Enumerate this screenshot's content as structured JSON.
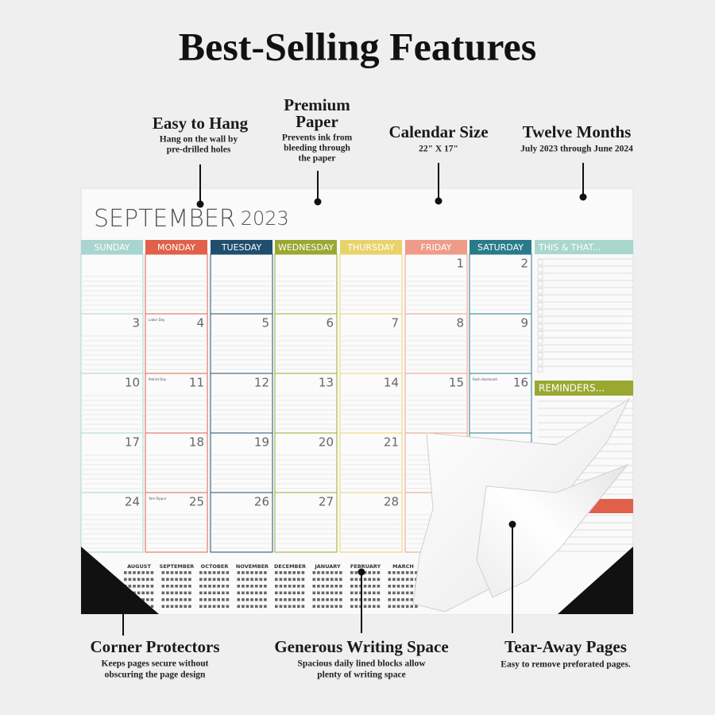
{
  "header": {
    "title": "Best-Selling Features"
  },
  "callouts": {
    "hang": {
      "title": "Easy to Hang",
      "text": [
        "Hang on the wall by",
        "pre-drilled holes"
      ]
    },
    "paper": {
      "title": [
        "Premium",
        "Paper"
      ],
      "text": [
        "Prevents ink from",
        "bleeding through",
        "the paper"
      ]
    },
    "size": {
      "title": "Calendar Size",
      "text": [
        "22\" X 17\""
      ]
    },
    "months": {
      "title": "Twelve Months",
      "text": [
        "July 2023 through June 2024"
      ]
    },
    "corner": {
      "title": "Corner Protectors",
      "text": [
        "Keeps pages secure without",
        "obscuring the page design"
      ]
    },
    "writing": {
      "title": "Generous Writing Space",
      "text": [
        "Spacious daily lined blocks allow",
        "plenty of writing space"
      ]
    },
    "tear": {
      "title": "Tear-Away Pages",
      "text": [
        "Easy to remove preforated pages."
      ]
    }
  },
  "calendar": {
    "month": "SEPTEMBER",
    "year": "2023",
    "days": [
      "SUNDAY",
      "MONDAY",
      "TUESDAY",
      "WEDNESDAY",
      "THURSDAY",
      "FRIDAY",
      "SATURDAY"
    ],
    "sidebar": "THIS & THAT...",
    "reminders": "REMINDERS...",
    "weeks": [
      [
        null,
        null,
        null,
        null,
        null,
        "1",
        "2"
      ],
      [
        "3",
        {
          "date": "4",
          "note": "Labor Day"
        },
        "5",
        "6",
        "7",
        "8",
        "9"
      ],
      [
        "10",
        {
          "date": "11",
          "note": "Patriot Day"
        },
        "12",
        "13",
        "14",
        "15",
        {
          "date": "16",
          "note": "Rosh Hashanah"
        }
      ],
      [
        "17",
        "18",
        "19",
        "20",
        "21",
        null,
        null
      ],
      [
        "24",
        {
          "date": "25",
          "note": "Yom Kippur"
        },
        "26",
        "27",
        "28",
        null,
        null
      ]
    ],
    "mini_months": [
      "AUGUST",
      "SEPTEMBER",
      "OCTOBER",
      "NOVEMBER",
      "DECEMBER",
      "JANUARY",
      "FEBRUARY",
      "MARCH"
    ]
  }
}
